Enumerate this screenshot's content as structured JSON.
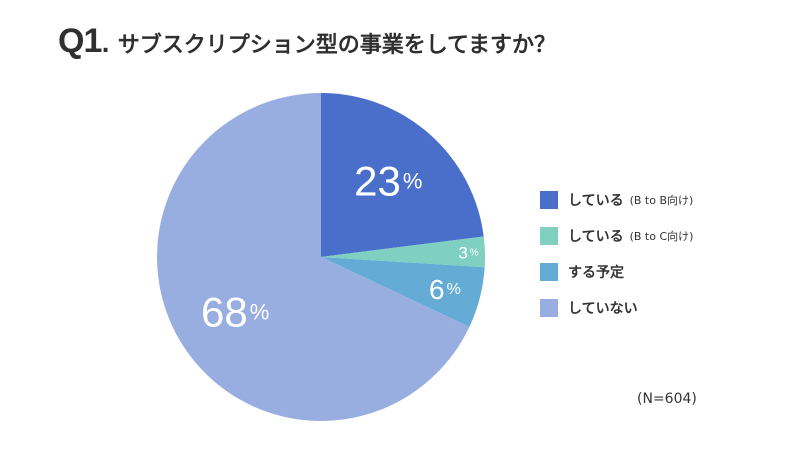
{
  "title": {
    "number": "Q1",
    "dot": ".",
    "text": "サブスクリプション型の事業をしてますか？"
  },
  "chart_data": {
    "type": "pie",
    "slices": [
      {
        "label": "している",
        "note": "(B to B向け)",
        "value": 23,
        "value_label": "23",
        "color": "#4a6fcb"
      },
      {
        "label": "している",
        "note": "(B to C向け)",
        "value": 3,
        "value_label": "3",
        "color": "#7fd0c0"
      },
      {
        "label": "する予定",
        "note": "",
        "value": 6,
        "value_label": "6",
        "color": "#64acd6"
      },
      {
        "label": "していない",
        "note": "",
        "value": 68,
        "value_label": "68",
        "color": "#99aee0"
      }
    ],
    "unit": "%",
    "start": "12 o'clock, clockwise",
    "legend_position": "right"
  },
  "sample_size": "(N=604)"
}
